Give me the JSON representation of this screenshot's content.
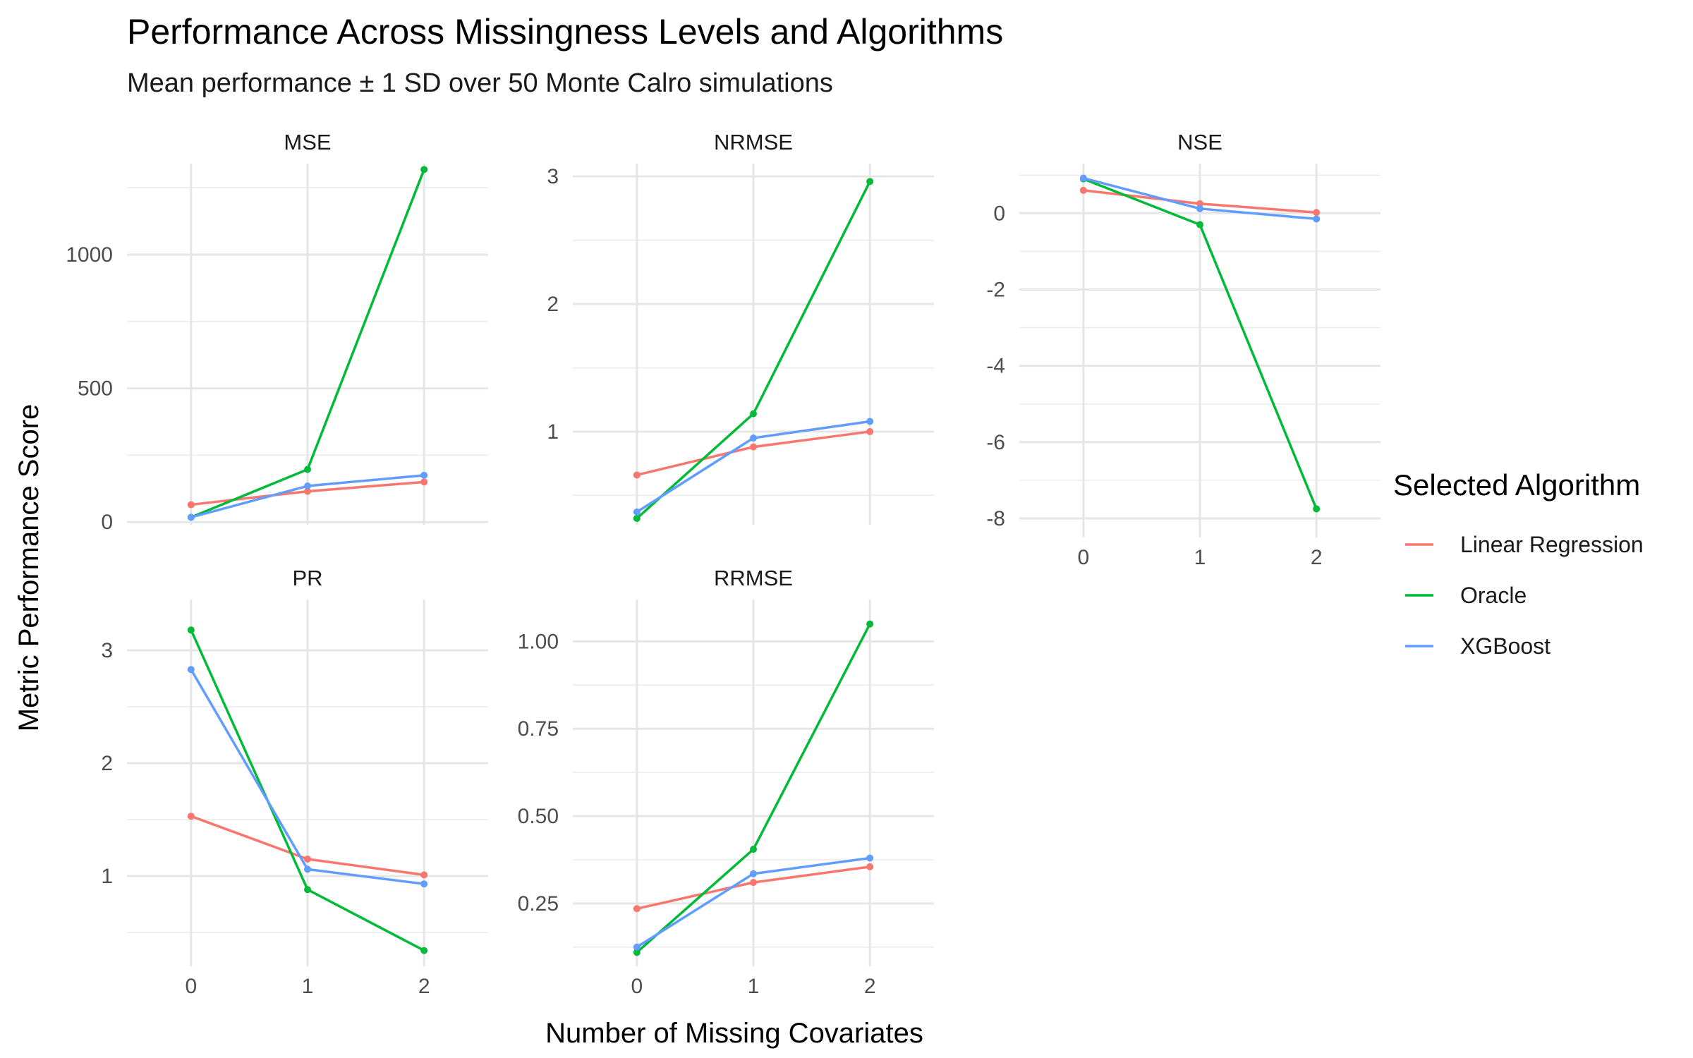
{
  "chart_data": {
    "type": "line",
    "title": "Performance Across Missingness Levels and Algorithms",
    "subtitle": "Mean performance ± 1 SD over 50 Monte Calro simulations",
    "xlabel": "Number of Missing Covariates",
    "ylabel": "Metric Performance Score",
    "x": [
      0,
      1,
      2
    ],
    "x_ticks": [
      "0",
      "1",
      "2"
    ],
    "grid": true,
    "legend": {
      "title": "Selected Algorithm",
      "position": "right",
      "entries": [
        "Linear Regression",
        "Oracle",
        "XGBoost"
      ]
    },
    "colors": {
      "Linear Regression": "#F8766D",
      "Oracle": "#00BA38",
      "XGBoost": "#619CFF"
    },
    "panels": [
      {
        "name": "MSE",
        "ylim": [
          -10,
          1340
        ],
        "y_ticks": [
          0,
          500,
          1000
        ],
        "y_tick_labels": [
          "0",
          "500",
          "1000"
        ],
        "series": [
          {
            "name": "Linear Regression",
            "values": [
              65,
              115,
              150
            ]
          },
          {
            "name": "Oracle",
            "values": [
              18,
              197,
              1318
            ]
          },
          {
            "name": "XGBoost",
            "values": [
              18,
              135,
              175
            ]
          }
        ]
      },
      {
        "name": "NRMSE",
        "ylim": [
          0.27,
          3.1
        ],
        "y_ticks": [
          1,
          2,
          3
        ],
        "y_tick_labels": [
          "1",
          "2",
          "3"
        ],
        "series": [
          {
            "name": "Linear Regression",
            "values": [
              0.66,
              0.88,
              1.0
            ]
          },
          {
            "name": "Oracle",
            "values": [
              0.32,
              1.14,
              2.96
            ]
          },
          {
            "name": "XGBoost",
            "values": [
              0.37,
              0.95,
              1.08
            ]
          }
        ]
      },
      {
        "name": "NSE",
        "ylim": [
          -8.5,
          1.3
        ],
        "y_ticks": [
          -8,
          -6,
          -4,
          -2,
          0
        ],
        "y_tick_labels": [
          "-8",
          "-6",
          "-4",
          "-2",
          "0"
        ],
        "series": [
          {
            "name": "Linear Regression",
            "values": [
              0.6,
              0.25,
              0.02
            ]
          },
          {
            "name": "Oracle",
            "values": [
              0.9,
              -0.3,
              -7.75
            ]
          },
          {
            "name": "XGBoost",
            "values": [
              0.92,
              0.12,
              -0.15
            ]
          }
        ]
      },
      {
        "name": "PR",
        "ylim": [
          0.2,
          3.45
        ],
        "y_ticks": [
          1,
          2,
          3
        ],
        "y_tick_labels": [
          "1",
          "2",
          "3"
        ],
        "series": [
          {
            "name": "Linear Regression",
            "values": [
              1.53,
              1.15,
              1.01
            ]
          },
          {
            "name": "Oracle",
            "values": [
              3.18,
              0.88,
              0.34
            ]
          },
          {
            "name": "XGBoost",
            "values": [
              2.83,
              1.06,
              0.93
            ]
          }
        ]
      },
      {
        "name": "RRMSE",
        "ylim": [
          0.07,
          1.12
        ],
        "y_ticks": [
          0.25,
          0.5,
          0.75,
          1.0
        ],
        "y_tick_labels": [
          "0.25",
          "0.50",
          "0.75",
          "1.00"
        ],
        "series": [
          {
            "name": "Linear Regression",
            "values": [
              0.235,
              0.31,
              0.355
            ]
          },
          {
            "name": "Oracle",
            "values": [
              0.11,
              0.405,
              1.05
            ]
          },
          {
            "name": "XGBoost",
            "values": [
              0.125,
              0.335,
              0.38
            ]
          }
        ]
      }
    ]
  }
}
